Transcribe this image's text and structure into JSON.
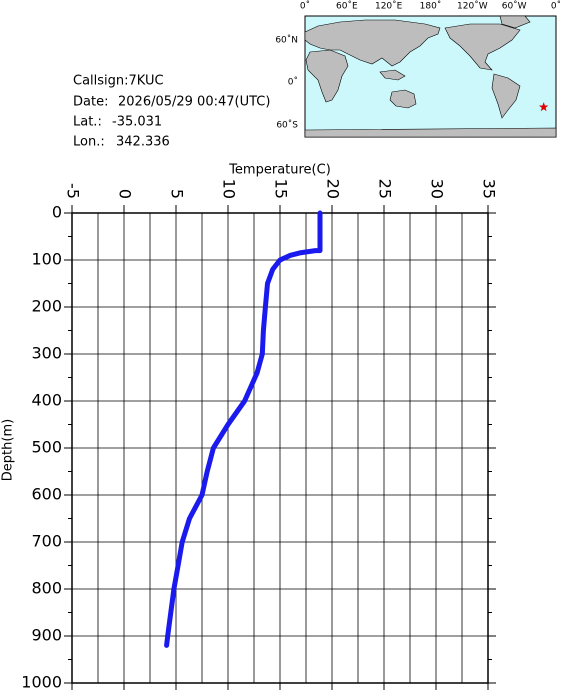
{
  "info": {
    "callsign": "Callsign:7KUC",
    "date_label": "Date:",
    "date": "2026/05/29 00:47(UTC)",
    "lat_label": "Lat.:",
    "lat": -35.031,
    "lon_label": "Lon.:",
    "lon": 342.336
  },
  "map": {
    "lon_labels": [
      "0˚",
      "60˚E",
      "120˚E",
      "180˚",
      "120˚W",
      "60˚W",
      "0˚"
    ],
    "lat_labels": [
      "60˚N",
      "0˚",
      "60˚S"
    ],
    "marker_color": "#e00000"
  },
  "chart_data": {
    "type": "line",
    "xlabel": "Temperature(C)",
    "ylabel": "Depth(m)",
    "xlim": [
      -5,
      35
    ],
    "xticks": [
      -5,
      0,
      5,
      10,
      15,
      20,
      25,
      30,
      35
    ],
    "ylim": [
      0,
      1000
    ],
    "yticks": [
      0,
      100,
      200,
      300,
      400,
      500,
      600,
      700,
      800,
      900,
      1000
    ],
    "y_inverted": true,
    "grid": true,
    "series": [
      {
        "color": "#1a1aee",
        "x": [
          18.85,
          18.85,
          18.4,
          16.9,
          16.0,
          15.0,
          14.3,
          13.8,
          13.6,
          13.4,
          13.3,
          12.8,
          11.6,
          10.0,
          8.6,
          8.0,
          7.5,
          6.3,
          5.6,
          5.2,
          4.8,
          4.5,
          4.2,
          4.1
        ],
        "values": [
          0,
          80,
          80,
          85,
          90,
          100,
          120,
          150,
          200,
          250,
          300,
          340,
          400,
          450,
          500,
          550,
          600,
          650,
          700,
          750,
          800,
          850,
          900,
          920
        ]
      }
    ]
  }
}
